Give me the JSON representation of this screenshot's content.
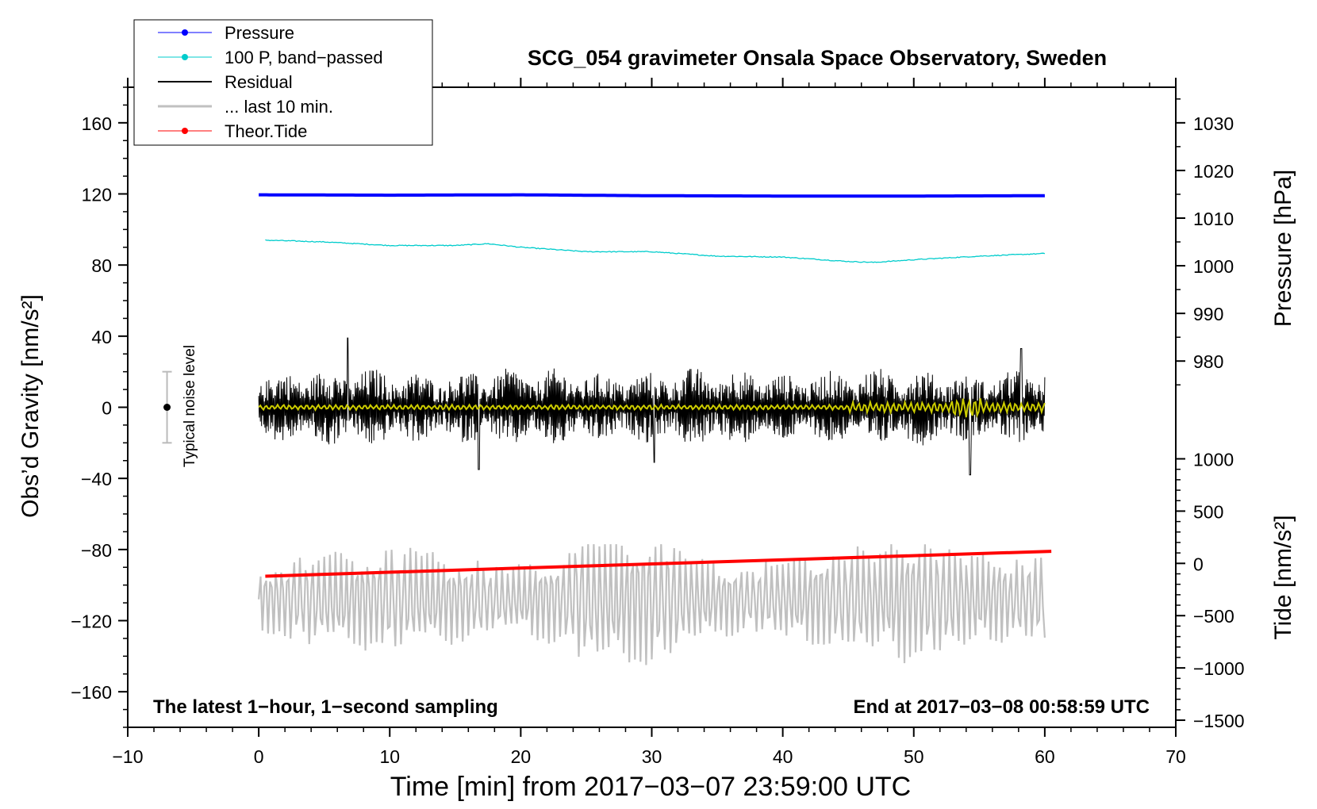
{
  "chart_data": {
    "type": "line",
    "title": "SCG_054 gravimeter Onsala Space Observatory, Sweden",
    "xlabel": "Time [min] from 2017−03−07 23:59:00 UTC",
    "ylabel_left": "Obs’d Gravity [nm/s²]",
    "ylabel_right_top": "Pressure [hPa]",
    "ylabel_right_bottom": "Tide [nm/s²]",
    "annotation_left": "The latest 1−hour, 1−second sampling",
    "annotation_right": "End at 2017−03−08 00:58:59 UTC",
    "noise_label": "Typical noise level",
    "noise_bar": {
      "x": -7,
      "y": 0,
      "low": -20,
      "high": 20
    },
    "xlim": [
      -10,
      70
    ],
    "ylim_left": [
      -180,
      180
    ],
    "xticks": [
      -10,
      0,
      10,
      20,
      30,
      40,
      50,
      60,
      70
    ],
    "xtick_labels": [
      "−10",
      "0",
      "10",
      "20",
      "30",
      "40",
      "50",
      "60",
      "70"
    ],
    "yticks_left": [
      -160,
      -120,
      -80,
      -40,
      0,
      40,
      80,
      120,
      160
    ],
    "ytick_labels_left": [
      "−160",
      "−120",
      "−80",
      "−40",
      "0",
      "40",
      "80",
      "120",
      "160"
    ],
    "pressure_axis": {
      "ticks": [
        980,
        990,
        1000,
        1010,
        1020,
        1030
      ],
      "tick_labels": [
        "980",
        "990",
        "1000",
        "1010",
        "1020",
        "1030"
      ],
      "map": [
        [
          980,
          26
        ],
        [
          1030,
          160
        ]
      ]
    },
    "tide_axis": {
      "ticks": [
        -1500,
        -1000,
        -500,
        0,
        500,
        1000
      ],
      "tick_labels": [
        "−1500",
        "−1000",
        "−500",
        "0",
        "500",
        "1000"
      ],
      "map": [
        [
          -1500,
          -176
        ],
        [
          1000,
          -29
        ]
      ]
    },
    "legend": {
      "position": "top-left",
      "entries": [
        {
          "label": "Pressure",
          "color": "#0000ff",
          "marker": true
        },
        {
          "label": "100 P, band−passed",
          "color": "#00cccc",
          "marker": true
        },
        {
          "label": "Residual",
          "color": "#000000",
          "marker": false
        },
        {
          "label": "... last 10 min.",
          "color": "#c0c0c0",
          "marker": false
        },
        {
          "label": "Theor.Tide",
          "color": "#ff0000",
          "marker": true
        }
      ]
    },
    "series": [
      {
        "name": "Pressure",
        "color": "#0000ff",
        "x": [
          0,
          10,
          20,
          30,
          40,
          50,
          60
        ],
        "y": [
          119.5,
          119.3,
          119.5,
          119.0,
          118.8,
          118.8,
          119.0
        ]
      },
      {
        "name": "100 P, band−passed",
        "color": "#00cccc",
        "x": [
          0.5,
          5,
          10,
          15,
          17.5,
          20,
          25,
          30,
          35,
          40,
          45,
          47,
          50,
          55,
          60
        ],
        "y": [
          94,
          93,
          91,
          91,
          92,
          90,
          87.5,
          87.5,
          85,
          84.5,
          82,
          81.5,
          83,
          85,
          86.5
        ]
      },
      {
        "name": "Residual",
        "color": "#000000",
        "x": [
          0,
          60
        ],
        "envelope": [
          -25,
          25
        ],
        "peaks": [
          [
            6.8,
            39
          ],
          [
            16.8,
            -35
          ],
          [
            30.2,
            -31
          ],
          [
            54.3,
            -38
          ],
          [
            58.2,
            33
          ]
        ]
      },
      {
        "name": "Residual (smoothed)",
        "color": "#cccc00",
        "x": [
          0,
          60
        ],
        "y_level": 0,
        "burst_at": 54
      },
      {
        "name": "... last 10 min.",
        "color": "#c0c0c0",
        "x": [
          0,
          60
        ],
        "y_center": -108,
        "y_range": [
          -145,
          -77
        ]
      },
      {
        "name": "Theor.Tide",
        "color": "#ff0000",
        "x": [
          0.5,
          60.5
        ],
        "y": [
          -95,
          -81
        ]
      }
    ]
  }
}
